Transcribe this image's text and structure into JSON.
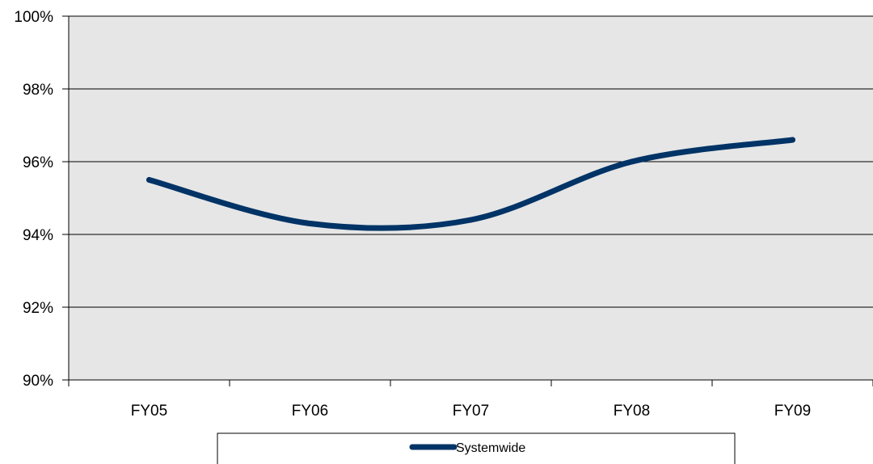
{
  "chart_data": {
    "type": "line",
    "title": "",
    "xlabel": "",
    "ylabel": "",
    "categories": [
      "FY05",
      "FY06",
      "FY07",
      "FY08",
      "FY09"
    ],
    "series": [
      {
        "name": "Systemwide",
        "values": [
          95.5,
          94.3,
          94.4,
          96.0,
          96.6
        ],
        "color": "#003366"
      }
    ],
    "ylim": [
      90,
      100
    ],
    "yticks": [
      90,
      92,
      94,
      96,
      98,
      100
    ],
    "ytick_labels": [
      "90%",
      "92%",
      "94%",
      "96%",
      "98%",
      "100%"
    ],
    "grid": true,
    "smooth": true,
    "legend_position": "bottom",
    "plot_background": "#e6e6e6"
  }
}
